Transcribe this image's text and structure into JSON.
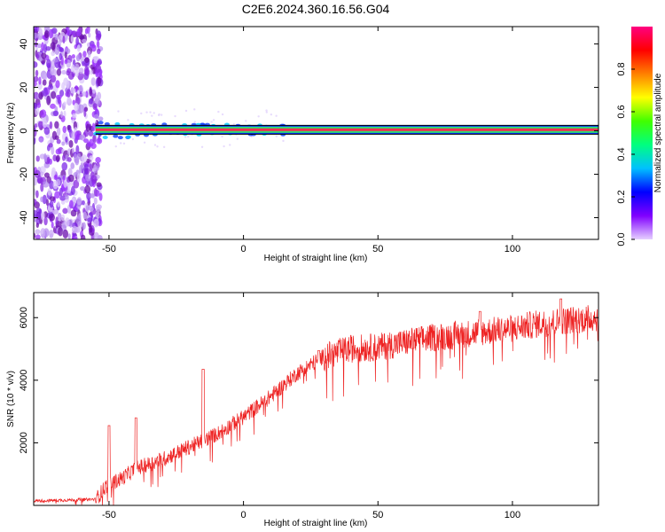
{
  "title": "C2E6.2024.360.16.56.G04",
  "chart_data": [
    {
      "type": "heatmap",
      "xlabel": "Height of straight line (km)",
      "ylabel": "Frequency (Hz)",
      "xlim": [
        -78,
        132
      ],
      "ylim": [
        -50,
        48
      ],
      "xticks": [
        -50,
        0,
        50,
        100
      ],
      "yticks": [
        -40,
        -20,
        0,
        20,
        40
      ],
      "xtick_labels": [
        "-50",
        "0",
        "50",
        "100"
      ],
      "ytick_labels": [
        "-40",
        "-20",
        "0",
        "20",
        "40"
      ],
      "colorbar": {
        "label": "Normalized spectral amplitude",
        "range": [
          0,
          1
        ],
        "ticks": [
          "0.0",
          "0.2",
          "0.4",
          "0.6",
          "0.8"
        ],
        "colors": [
          "#e6d0ff",
          "#8000ff",
          "#0000ff",
          "#00c0ff",
          "#00ff80",
          "#40ff00",
          "#ffff00",
          "#ff8000",
          "#ff0000",
          "#ff0080"
        ]
      },
      "noise_region_x": [
        -78,
        -55
      ],
      "carrier_frequency_hz": 0.5,
      "carrier_start_x": -55
    },
    {
      "type": "line",
      "xlabel": "Height of straight line (km)",
      "ylabel": "SNR (10 * v/v)",
      "xlim": [
        -78,
        132
      ],
      "ylim": [
        0,
        6800
      ],
      "xticks": [
        -50,
        0,
        50,
        100
      ],
      "yticks": [
        2000,
        4000,
        6000
      ],
      "xtick_labels": [
        "-50",
        "0",
        "50",
        "100"
      ],
      "ytick_labels": [
        "2000",
        "4000",
        "6000"
      ],
      "color": "#ee2222",
      "trend": {
        "x": [
          -78,
          -55,
          -51,
          -45,
          -40,
          -30,
          -20,
          -10,
          0,
          10,
          20,
          30,
          40,
          50,
          60,
          70,
          80,
          90,
          100,
          110,
          120,
          132
        ],
        "y": [
          150,
          200,
          650,
          900,
          1200,
          1500,
          1900,
          2300,
          2850,
          3500,
          4250,
          4800,
          5050,
          5100,
          5250,
          5400,
          5500,
          5600,
          5700,
          5850,
          5950,
          6050
        ]
      },
      "spikes": [
        {
          "x": -50,
          "y": 2550
        },
        {
          "x": -40,
          "y": 2800
        },
        {
          "x": -15,
          "y": 4350
        },
        {
          "x": 28,
          "y": 4950
        },
        {
          "x": 88,
          "y": 6200
        },
        {
          "x": 118,
          "y": 6600
        }
      ]
    }
  ]
}
